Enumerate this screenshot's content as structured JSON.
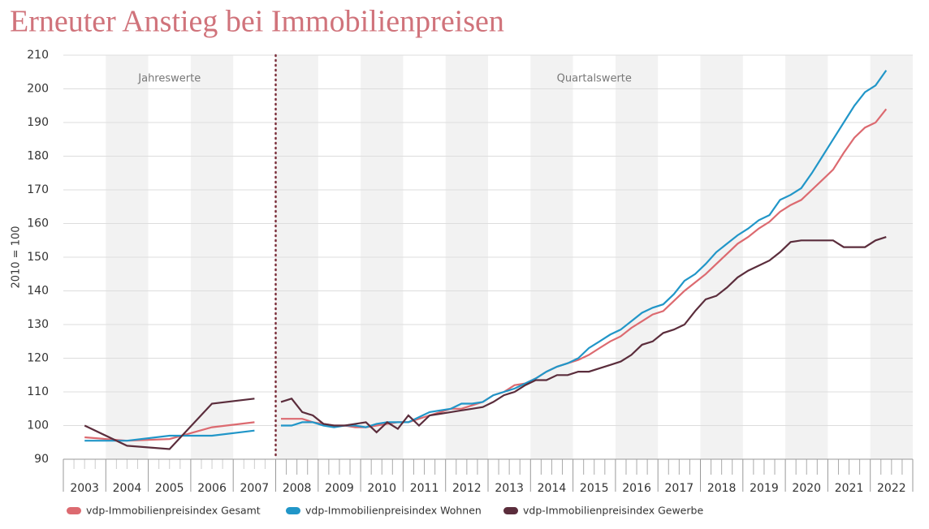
{
  "chart_data": {
    "type": "line",
    "title": "Erneuter Anstieg bei Immobilienpreisen",
    "ylabel": "2010 = 100",
    "annotations": [
      "Jahreswerte",
      "Quartalswerte"
    ],
    "categories": [
      "2003",
      "2004",
      "2005",
      "2006",
      "2007",
      "2008",
      "2009",
      "2010",
      "2011",
      "2012",
      "2013",
      "2014",
      "2015",
      "2016",
      "2017",
      "2018",
      "2019",
      "2020",
      "2021",
      "2022"
    ],
    "ylim": [
      90,
      210
    ],
    "yticks": [
      90,
      100,
      110,
      120,
      130,
      140,
      150,
      160,
      170,
      180,
      190,
      200,
      210
    ],
    "grid": true,
    "series": [
      {
        "name": "vdp-Immobilienpreisindex Gesamt",
        "color": "#dc6a70",
        "annual": [
          96.5,
          95.5,
          96,
          99.5,
          101
        ],
        "quarterly": [
          102,
          102,
          102,
          101,
          100.5,
          100,
          100,
          99.5,
          99.5,
          100,
          100.5,
          101,
          101,
          102,
          103,
          104,
          105,
          105,
          106,
          107,
          109,
          110,
          112,
          112.5,
          114,
          116,
          117.5,
          118.5,
          119.5,
          121,
          123,
          125,
          126.5,
          129,
          131,
          133,
          134,
          137,
          140,
          142.5,
          145,
          148,
          151,
          154,
          156,
          158.5,
          160.5,
          163.5,
          165.5,
          167,
          170,
          173,
          176,
          181,
          185.5,
          188.5,
          190,
          194
        ]
      },
      {
        "name": "vdp-Immobilienpreisindex Wohnen",
        "color": "#2196c8",
        "annual": [
          95.5,
          95.5,
          97,
          97,
          98.5
        ],
        "quarterly": [
          100,
          100,
          101,
          101,
          100,
          99.5,
          100,
          100,
          99.5,
          100.5,
          101,
          101,
          101,
          102.5,
          104,
          104.5,
          105,
          106.5,
          106.5,
          107,
          109,
          110,
          111,
          112.5,
          114,
          116,
          117.5,
          118.5,
          120,
          123,
          125,
          127,
          128.5,
          131,
          133.5,
          135,
          136,
          139,
          143,
          145,
          148,
          151.5,
          154,
          156.5,
          158.5,
          161,
          162.5,
          167,
          168.5,
          170.5,
          175,
          180,
          185,
          190,
          195,
          199,
          201,
          205.5
        ]
      },
      {
        "name": "vdp-Immobilienpreisindex Gewerbe",
        "color": "#5b2d3c",
        "annual": [
          100,
          94,
          93,
          106.5,
          108
        ],
        "quarterly": [
          107,
          108,
          104,
          103,
          100.5,
          100,
          100,
          100.5,
          101,
          98,
          101,
          99,
          103,
          100,
          103,
          103.5,
          104,
          104.5,
          105,
          105.5,
          107,
          109,
          110,
          112,
          113.5,
          113.5,
          115,
          115,
          116,
          116,
          117,
          118,
          119,
          121,
          124,
          125,
          127.5,
          128.5,
          130,
          134,
          137.5,
          138.5,
          141,
          144,
          146,
          147.5,
          149,
          151.5,
          154.5,
          155,
          155,
          155,
          155,
          153,
          153,
          153,
          155,
          156
        ]
      }
    ]
  }
}
